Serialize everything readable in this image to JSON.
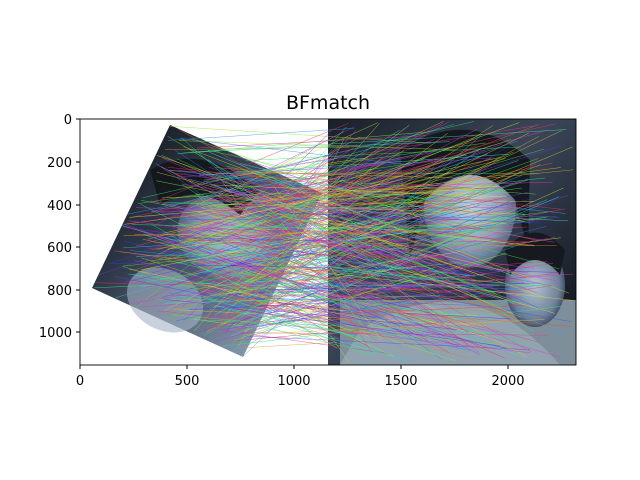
{
  "chart_data": {
    "type": "image",
    "title": "BFmatch",
    "xlabel": "",
    "ylabel": "",
    "xlim": [
      0,
      2320
    ],
    "ylim": [
      1160,
      0
    ],
    "x_ticks": [
      0,
      500,
      1000,
      1500,
      2000
    ],
    "y_ticks": [
      0,
      200,
      400,
      600,
      800,
      1000
    ],
    "x_tick_labels": [
      "0",
      "500",
      "1000",
      "1500",
      "2000"
    ],
    "y_tick_labels": [
      "0",
      "200",
      "400",
      "600",
      "800",
      "1000"
    ],
    "panels": [
      {
        "name": "rotated-query-image",
        "x_range": [
          0,
          1160
        ]
      },
      {
        "name": "train-image",
        "x_range": [
          1160,
          2320
        ]
      }
    ],
    "match_line_count": 480
  },
  "colors": {
    "background": "#ffffff",
    "axes": "#000000",
    "photo_dark": "#101318",
    "photo_mid": "#5d6f85",
    "photo_light": "#aebfd0"
  }
}
